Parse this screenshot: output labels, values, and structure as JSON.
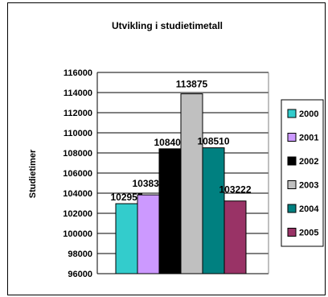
{
  "chart_data": {
    "type": "bar",
    "title": "Utvikling i studietimetall",
    "ylabel": "Studietimer",
    "xlabel": "",
    "ylim": [
      96000,
      116000
    ],
    "yticks": [
      96000,
      98000,
      100000,
      102000,
      104000,
      106000,
      108000,
      110000,
      112000,
      114000,
      116000
    ],
    "grid": true,
    "legend_position": "right",
    "series": [
      {
        "name": "2000",
        "value": 102957,
        "color": "#33CCCC"
      },
      {
        "name": "2001",
        "value": 103831,
        "color": "#CC99FF"
      },
      {
        "name": "2002",
        "value": 108409,
        "color": "#000000"
      },
      {
        "name": "2003",
        "value": 113875,
        "color": "#C0C0C0"
      },
      {
        "name": "2004",
        "value": 108510,
        "color": "#008080"
      },
      {
        "name": "2005",
        "value": 103222,
        "color": "#993366"
      }
    ]
  }
}
